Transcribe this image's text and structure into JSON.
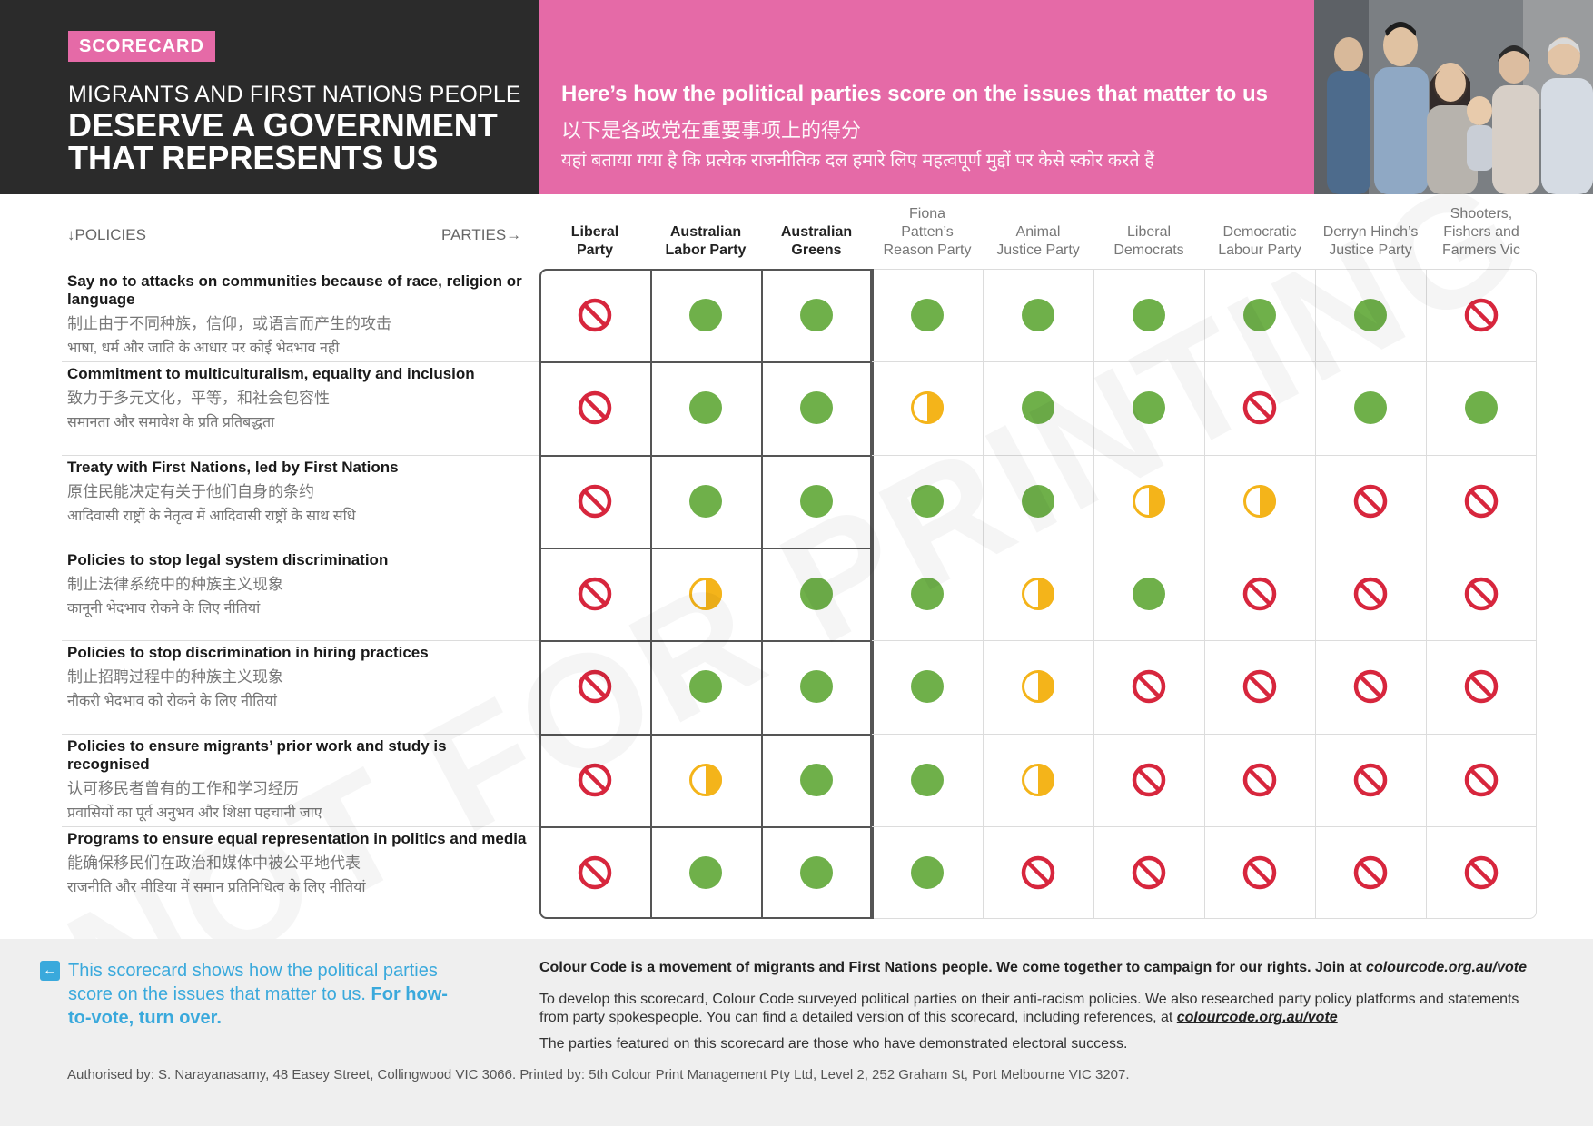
{
  "header": {
    "badge": "SCORECARD",
    "subtitle": "MIGRANTS AND FIRST NATIONS PEOPLE",
    "title": "DESERVE A GOVERNMENT THAT REPRESENTS US",
    "intro_en": "Here’s how the political parties score on the issues that matter to us",
    "intro_zh": "以下是各政党在重要事项上的得分",
    "intro_hi": "यहां बताया गया है कि प्रत्येक राजनीतिक दल हमारे लिए महत्वपूर्ण मुद्दों पर कैसे स्कोर करते हैं"
  },
  "labels": {
    "policies": "↓POLICIES",
    "parties": "PARTIES→"
  },
  "parties": [
    {
      "lines": [
        "Liberal",
        "Party"
      ],
      "highlight": true
    },
    {
      "lines": [
        "Australian",
        "Labor Party"
      ],
      "highlight": true
    },
    {
      "lines": [
        "Australian",
        "Greens"
      ],
      "highlight": true
    },
    {
      "lines": [
        "Fiona",
        "Patten’s",
        "Reason Party"
      ],
      "highlight": false
    },
    {
      "lines": [
        "Animal",
        "Justice Party"
      ],
      "highlight": false
    },
    {
      "lines": [
        "Liberal",
        "Democrats"
      ],
      "highlight": false
    },
    {
      "lines": [
        "Democratic",
        "Labour Party"
      ],
      "highlight": false
    },
    {
      "lines": [
        "Derryn Hinch’s",
        "Justice Party"
      ],
      "highlight": false
    },
    {
      "lines": [
        "Shooters,",
        "Fishers and",
        "Farmers Vic"
      ],
      "highlight": false
    }
  ],
  "policies": [
    {
      "en": "Say no to attacks on communities because of race, religion or language",
      "zh": "制止由于不同种族，信仰，或语言而产生的攻击",
      "hi": "भाषा, धर्म और जाति के आधार पर कोई भेदभाव नही",
      "scores": [
        "no",
        "yes",
        "yes",
        "yes",
        "yes",
        "yes",
        "yes",
        "yes",
        "no"
      ]
    },
    {
      "en": "Commitment to multiculturalism, equality and inclusion",
      "zh": "致力于多元文化，平等，和社会包容性",
      "hi": "समानता और समावेश के प्रति प्रतिबद्धता",
      "scores": [
        "no",
        "yes",
        "yes",
        "partial",
        "yes",
        "yes",
        "no",
        "yes",
        "yes"
      ]
    },
    {
      "en": "Treaty with First Nations, led by First Nations",
      "zh": "原住民能决定有关于他们自身的条约",
      "hi": "आदिवासी राष्ट्रों के नेतृत्व में आदिवासी राष्ट्रों के साथ संधि",
      "scores": [
        "no",
        "yes",
        "yes",
        "yes",
        "yes",
        "partial",
        "partial",
        "no",
        "no"
      ]
    },
    {
      "en": "Policies to stop legal system discrimination",
      "zh": "制止法律系统中的种族主义现象",
      "hi": "कानूनी भेदभाव रोकने के लिए नीतियां",
      "scores": [
        "no",
        "partial",
        "yes",
        "yes",
        "partial",
        "yes",
        "no",
        "no",
        "no"
      ]
    },
    {
      "en": "Policies to stop discrimination in hiring practices",
      "zh": "制止招聘过程中的种族主义现象",
      "hi": "नौकरी भेदभाव को रोकने के लिए नीतियां",
      "scores": [
        "no",
        "yes",
        "yes",
        "yes",
        "partial",
        "no",
        "no",
        "no",
        "no"
      ]
    },
    {
      "en": "Policies to ensure migrants’ prior work and study is recognised",
      "zh": "认可移民者曾有的工作和学习经历",
      "hi": "प्रवासियों का पूर्व अनुभव और शिक्षा पहचानी जाए",
      "scores": [
        "no",
        "partial",
        "yes",
        "yes",
        "partial",
        "no",
        "no",
        "no",
        "no"
      ]
    },
    {
      "en": "Programs to ensure equal representation in politics and media",
      "zh": "能确保移民们在政治和媒体中被公平地代表",
      "hi": "राजनीति और मीडिया में समान प्रतिनिधित्व के लिए नीतियां",
      "scores": [
        "no",
        "yes",
        "yes",
        "yes",
        "no",
        "no",
        "no",
        "no",
        "no"
      ]
    }
  ],
  "colors": {
    "yes": "#6fb04a",
    "partial": "#f4b41a",
    "no": "#d7263d",
    "pink": "#e56aa7",
    "dark": "#2b2b2b",
    "blue": "#3aa9dc"
  },
  "watermark": "NOT FOR PRINTING",
  "footer": {
    "callout_1": "This scorecard shows how the political parties score on the issues that matter to us.",
    "callout_2": "For how-to-vote, turn over.",
    "about": "Colour Code is a movement of migrants and First Nations people. We come together to campaign for our rights. Join at ",
    "link": "colourcode.org.au/vote",
    "method": "To develop this scorecard, Colour Code surveyed political parties on their anti-racism policies. We also researched party policy platforms and statements from party spokespeople. You can find a detailed version of this scorecard, including references, at ",
    "featured": "The parties featured on this scorecard are those who have demonstrated electoral success.",
    "authorised": "Authorised by: S. Narayanasamy, 48 Easey Street, Collingwood VIC 3066. Printed by: 5th Colour Print Management Pty Ltd, Level 2, 252 Graham St, Port Melbourne VIC 3207."
  }
}
